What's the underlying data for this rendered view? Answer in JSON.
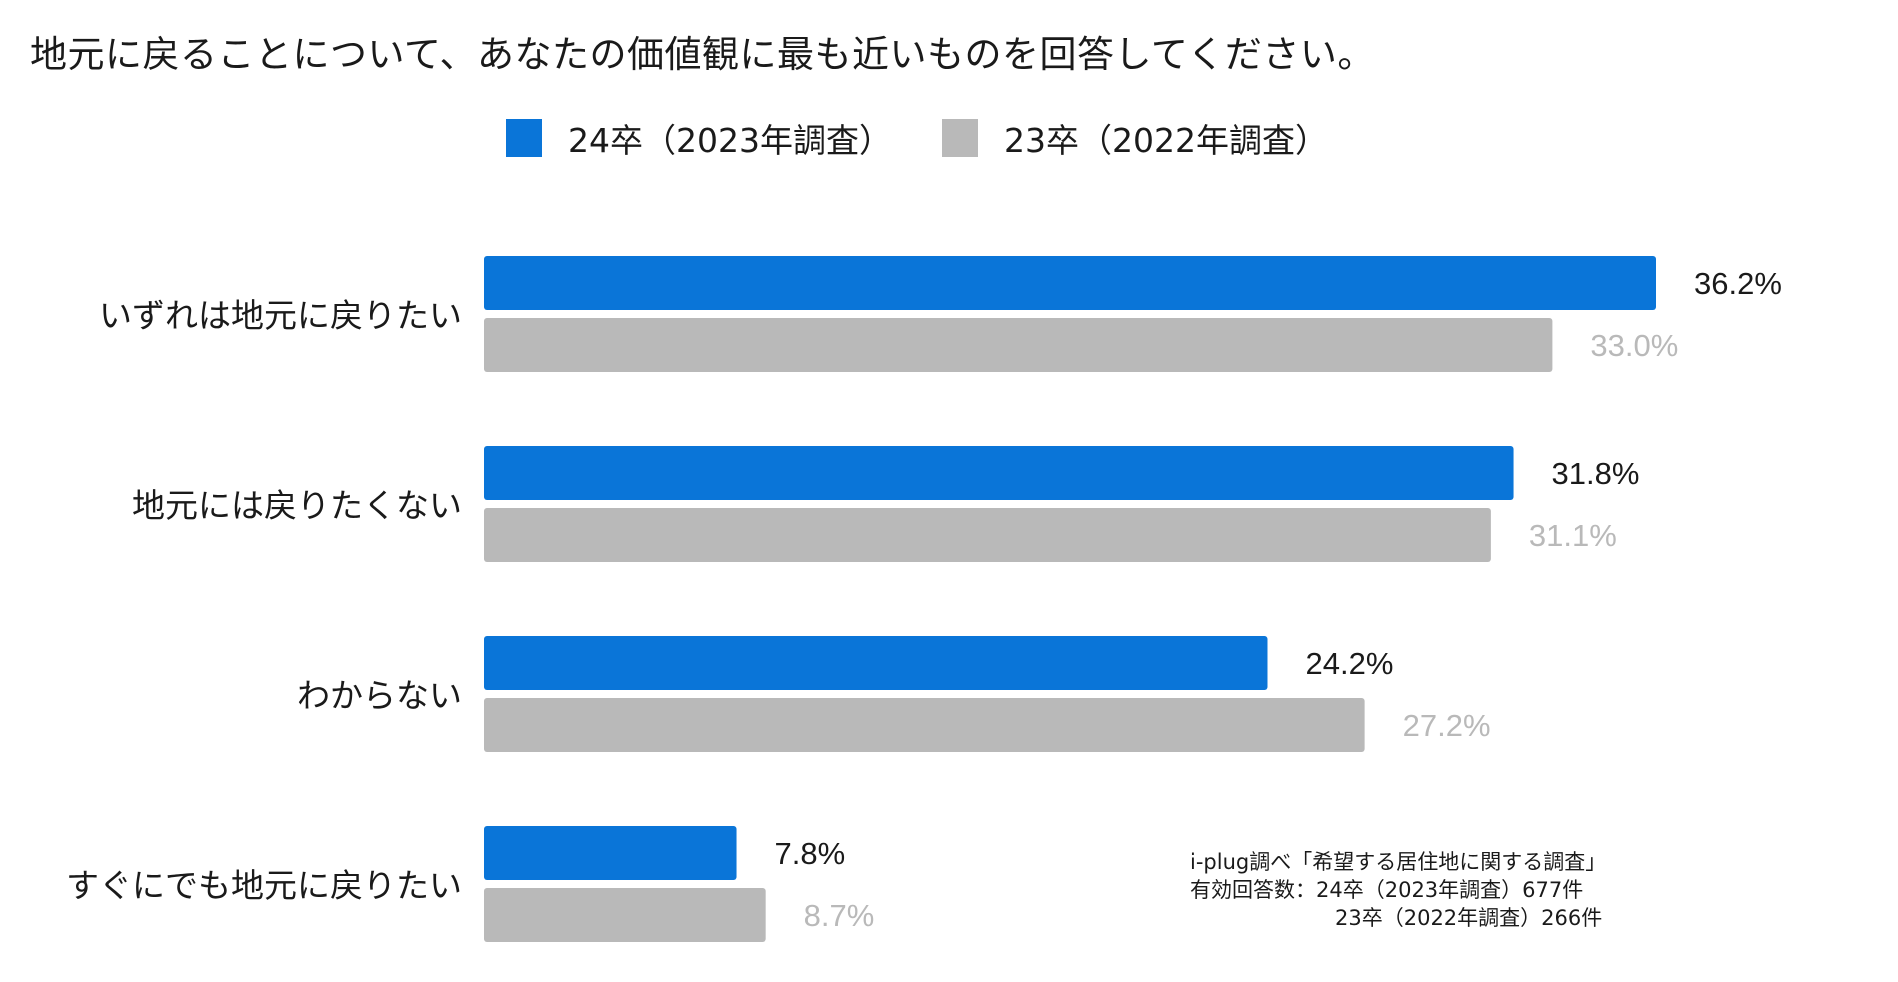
{
  "chart_data": {
    "type": "bar",
    "orientation": "horizontal",
    "title": "地元に戻ることについて、あなたの価値観に最も近いものを回答してください。",
    "categories": [
      "いずれは地元に戻りたい",
      "地元には戻りたくない",
      "わからない",
      "すぐにでも地元に戻りたい"
    ],
    "series": [
      {
        "name": "24卒（2023年調査）",
        "color": "#0A75D8",
        "label_color": "#1a1a1a",
        "values": [
          36.2,
          31.8,
          24.2,
          7.8
        ]
      },
      {
        "name": "23卒（2022年調査）",
        "color": "#B9B9B9",
        "label_color": "#B9B9B9",
        "values": [
          33.0,
          31.1,
          27.2,
          8.7
        ]
      }
    ],
    "value_format": "%",
    "xlim": [
      0,
      40
    ],
    "grid": false,
    "legend_position": "top"
  },
  "note": {
    "line1": "i-plug調べ「希望する居住地に関する調査」",
    "line2": "有効回答数：24卒（2023年調査）677件",
    "line3": "23卒（2022年調査）266件"
  }
}
